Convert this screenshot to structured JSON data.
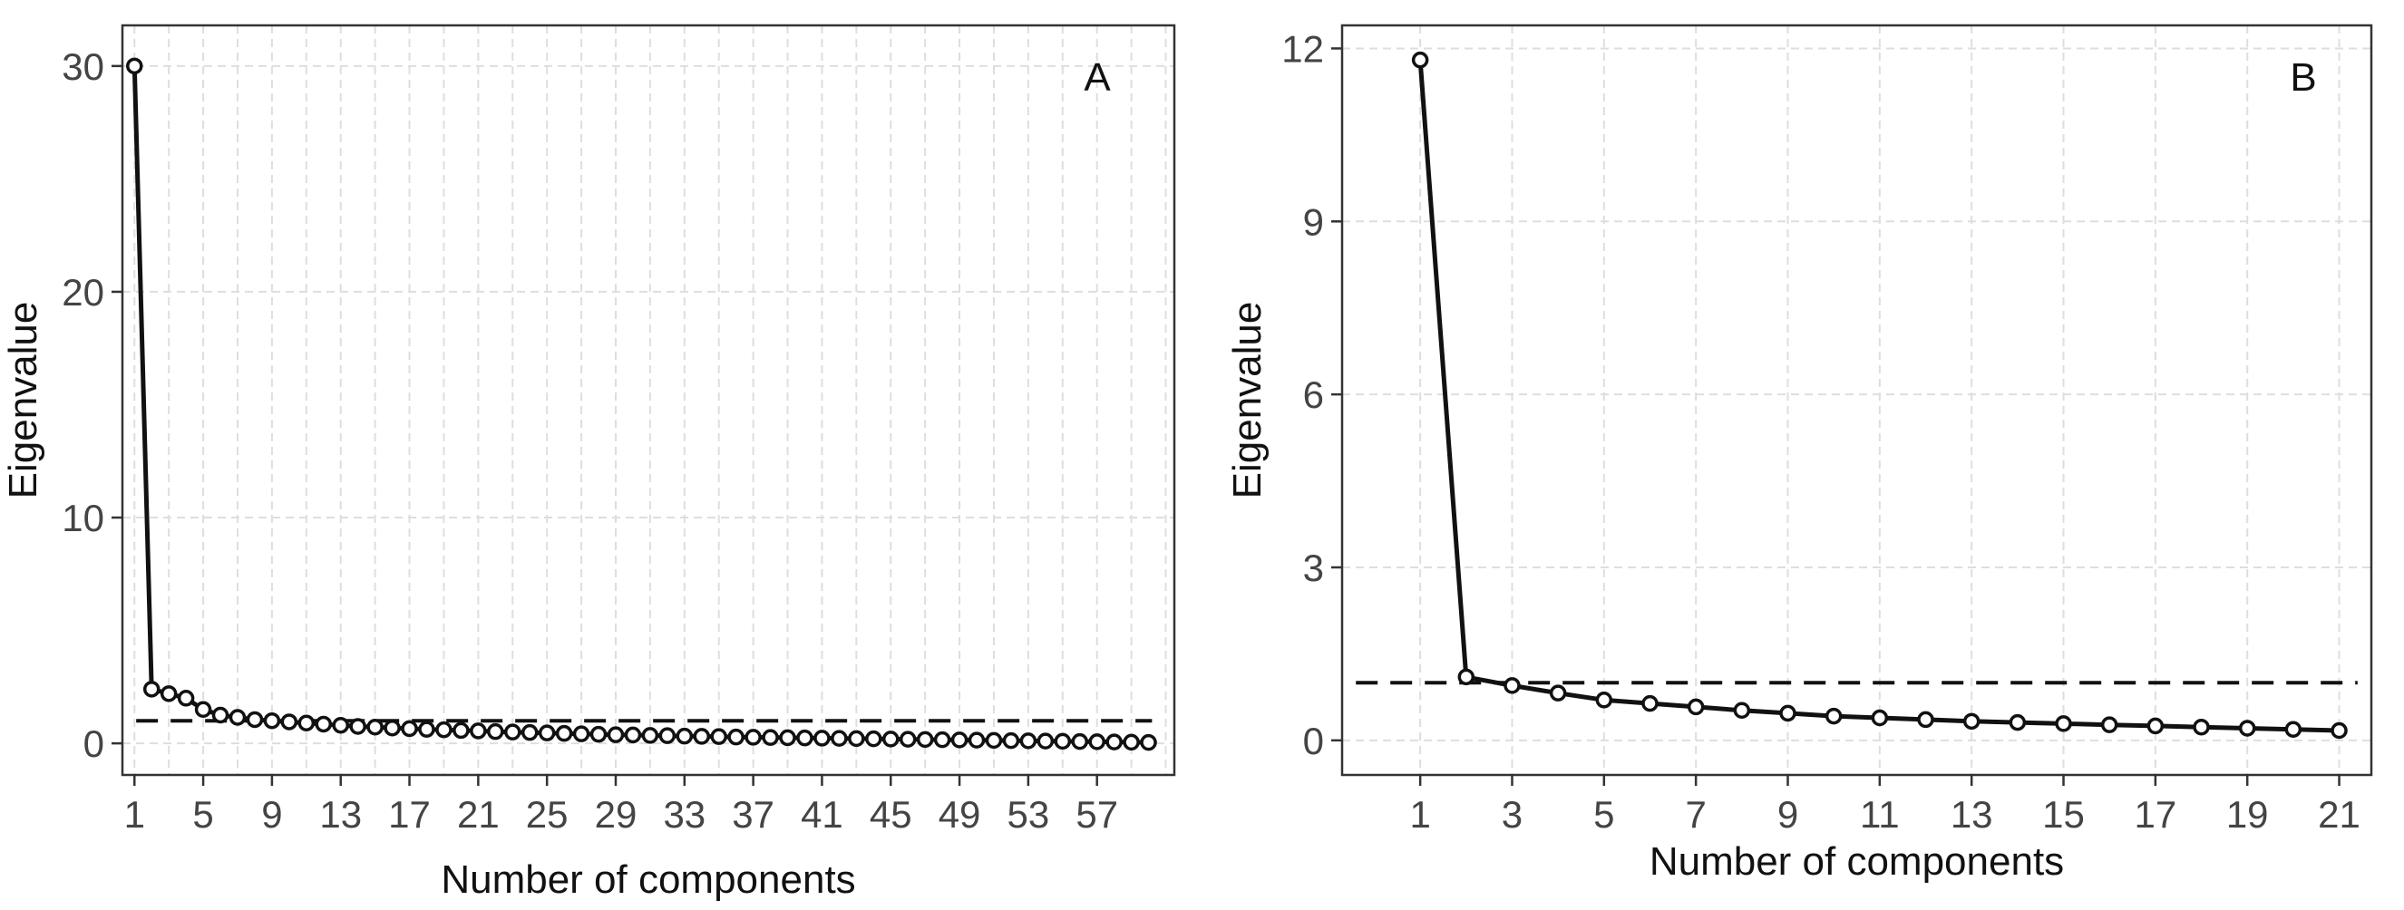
{
  "chart_data": [
    {
      "type": "line",
      "panel_label": "A",
      "xlabel": "Number of components",
      "ylabel": "Eigenvalue",
      "x": [
        1,
        2,
        3,
        4,
        5,
        6,
        7,
        8,
        9,
        10,
        11,
        12,
        13,
        14,
        15,
        16,
        17,
        18,
        19,
        20,
        21,
        22,
        23,
        24,
        25,
        26,
        27,
        28,
        29,
        30,
        31,
        32,
        33,
        34,
        35,
        36,
        37,
        38,
        39,
        40,
        41,
        42,
        43,
        44,
        45,
        46,
        47,
        48,
        49,
        50,
        51,
        52,
        53,
        54,
        55,
        56,
        57,
        58,
        59,
        60
      ],
      "values": [
        30.0,
        2.4,
        2.2,
        2.0,
        1.5,
        1.25,
        1.15,
        1.05,
        1.0,
        0.95,
        0.9,
        0.85,
        0.8,
        0.75,
        0.72,
        0.68,
        0.65,
        0.62,
        0.6,
        0.57,
        0.55,
        0.52,
        0.5,
        0.48,
        0.46,
        0.44,
        0.42,
        0.4,
        0.38,
        0.37,
        0.35,
        0.34,
        0.32,
        0.31,
        0.3,
        0.28,
        0.27,
        0.26,
        0.25,
        0.24,
        0.23,
        0.22,
        0.21,
        0.2,
        0.19,
        0.18,
        0.17,
        0.16,
        0.15,
        0.14,
        0.13,
        0.12,
        0.11,
        0.1,
        0.09,
        0.08,
        0.07,
        0.06,
        0.05,
        0.04
      ],
      "reference_line": 1,
      "xlim": [
        0.3,
        61.5
      ],
      "ylim": [
        -1.4,
        31.8
      ],
      "xticks": [
        1,
        5,
        9,
        13,
        17,
        21,
        25,
        29,
        33,
        37,
        41,
        45,
        49,
        53,
        57
      ],
      "yticks": [
        0,
        10,
        20,
        30
      ],
      "xgrid": [
        1,
        3,
        5,
        7,
        9,
        11,
        13,
        15,
        17,
        19,
        21,
        23,
        25,
        27,
        29,
        31,
        33,
        35,
        37,
        39,
        41,
        43,
        45,
        47,
        49,
        51,
        53,
        55,
        57,
        59,
        61
      ],
      "grid": true
    },
    {
      "type": "line",
      "panel_label": "B",
      "xlabel": "Number of components",
      "ylabel": "Eigenvalue",
      "x": [
        1,
        2,
        3,
        4,
        5,
        6,
        7,
        8,
        9,
        10,
        11,
        12,
        13,
        14,
        15,
        16,
        17,
        18,
        19,
        20,
        21
      ],
      "values": [
        11.8,
        1.1,
        0.95,
        0.82,
        0.7,
        0.64,
        0.58,
        0.52,
        0.47,
        0.42,
        0.39,
        0.36,
        0.33,
        0.31,
        0.29,
        0.27,
        0.25,
        0.23,
        0.21,
        0.19,
        0.17
      ],
      "reference_line": 1,
      "xlim": [
        -0.7,
        21.7
      ],
      "ylim": [
        -0.6,
        12.4
      ],
      "xticks": [
        1,
        3,
        5,
        7,
        9,
        11,
        13,
        15,
        17,
        19,
        21
      ],
      "yticks": [
        0,
        3,
        6,
        9,
        12
      ],
      "xgrid": [
        1,
        3,
        5,
        7,
        9,
        11,
        13,
        15,
        17,
        19,
        21
      ],
      "grid": true
    }
  ]
}
